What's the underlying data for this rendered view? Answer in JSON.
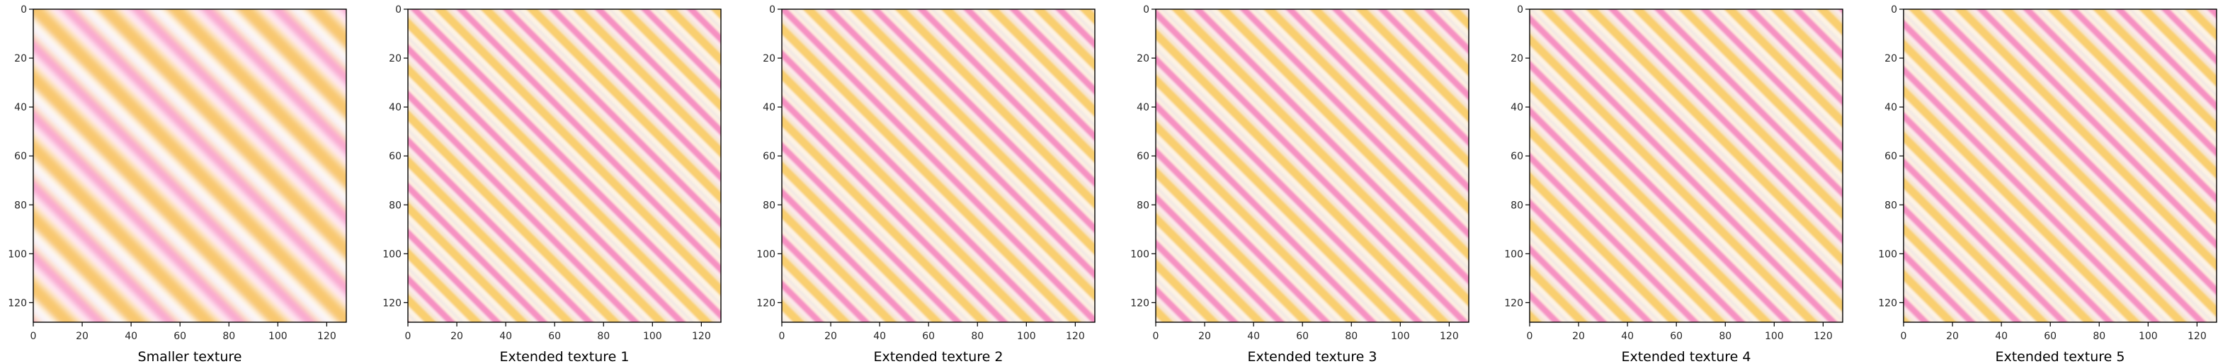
{
  "panels": [
    {
      "title": "Smaller texture",
      "period": 70,
      "stripes": [
        [
          "#ffe6b0",
          0,
          0.07
        ],
        [
          "#f9a8cf",
          0.07,
          0.28
        ],
        [
          "#ffe8f5",
          0.28,
          0.42
        ],
        [
          "#fde5b5",
          0.42,
          0.5
        ],
        [
          "#f8c770",
          0.5,
          0.78
        ],
        [
          "#fffaf0",
          0.78,
          0.9
        ],
        [
          "#f6f0ff",
          0.9,
          1.0
        ]
      ],
      "blur": 4
    },
    {
      "title": "Extended texture 1",
      "period": 46,
      "stripes": [
        [
          "#fdeee0",
          0,
          0.1
        ],
        [
          "#f691c2",
          0.1,
          0.3
        ],
        [
          "#fbe8ea",
          0.3,
          0.42
        ],
        [
          "#f7e6d0",
          0.42,
          0.52
        ],
        [
          "#f9cf6f",
          0.52,
          0.78
        ],
        [
          "#fdf3e4",
          0.78,
          0.92
        ],
        [
          "#f1e8e4",
          0.92,
          1.0
        ]
      ],
      "blur": 1.2
    },
    {
      "title": "Extended texture 2",
      "period": 46,
      "stripes": [
        [
          "#fdeee0",
          0,
          0.1
        ],
        [
          "#f691c2",
          0.1,
          0.3
        ],
        [
          "#fbe8ea",
          0.3,
          0.42
        ],
        [
          "#f7e6d0",
          0.42,
          0.52
        ],
        [
          "#f9cf6f",
          0.52,
          0.78
        ],
        [
          "#fdf3e4",
          0.78,
          0.92
        ],
        [
          "#f1e8e4",
          0.92,
          1.0
        ]
      ],
      "blur": 1.2
    },
    {
      "title": "Extended texture 3",
      "period": 46,
      "stripes": [
        [
          "#fdeee0",
          0,
          0.1
        ],
        [
          "#f691c2",
          0.1,
          0.3
        ],
        [
          "#fbe8ea",
          0.3,
          0.42
        ],
        [
          "#f7e6d0",
          0.42,
          0.52
        ],
        [
          "#f9cf6f",
          0.52,
          0.78
        ],
        [
          "#fdf3e4",
          0.78,
          0.92
        ],
        [
          "#f1e8e4",
          0.92,
          1.0
        ]
      ],
      "blur": 1.2
    },
    {
      "title": "Extended texture 4",
      "period": 46,
      "stripes": [
        [
          "#fdeee0",
          0,
          0.1
        ],
        [
          "#f691c2",
          0.1,
          0.3
        ],
        [
          "#fbe8ea",
          0.3,
          0.42
        ],
        [
          "#f7e6d0",
          0.42,
          0.52
        ],
        [
          "#f9cf6f",
          0.52,
          0.78
        ],
        [
          "#fdf3e4",
          0.78,
          0.92
        ],
        [
          "#f1e8e4",
          0.92,
          1.0
        ]
      ],
      "blur": 1.2
    },
    {
      "title": "Extended texture 5",
      "period": 46,
      "stripes": [
        [
          "#fdeee0",
          0,
          0.1
        ],
        [
          "#f691c2",
          0.1,
          0.3
        ],
        [
          "#fbe8ea",
          0.3,
          0.42
        ],
        [
          "#f7e6d0",
          0.42,
          0.52
        ],
        [
          "#f9cf6f",
          0.52,
          0.78
        ],
        [
          "#fdf3e4",
          0.78,
          0.92
        ],
        [
          "#f1e8e4",
          0.92,
          1.0
        ]
      ],
      "blur": 1.2
    }
  ],
  "axis": {
    "x_ticks": [
      "0",
      "20",
      "40",
      "60",
      "80",
      "100",
      "120"
    ],
    "y_ticks": [
      "0",
      "20",
      "40",
      "60",
      "80",
      "100",
      "120"
    ],
    "range": [
      0,
      128
    ]
  }
}
